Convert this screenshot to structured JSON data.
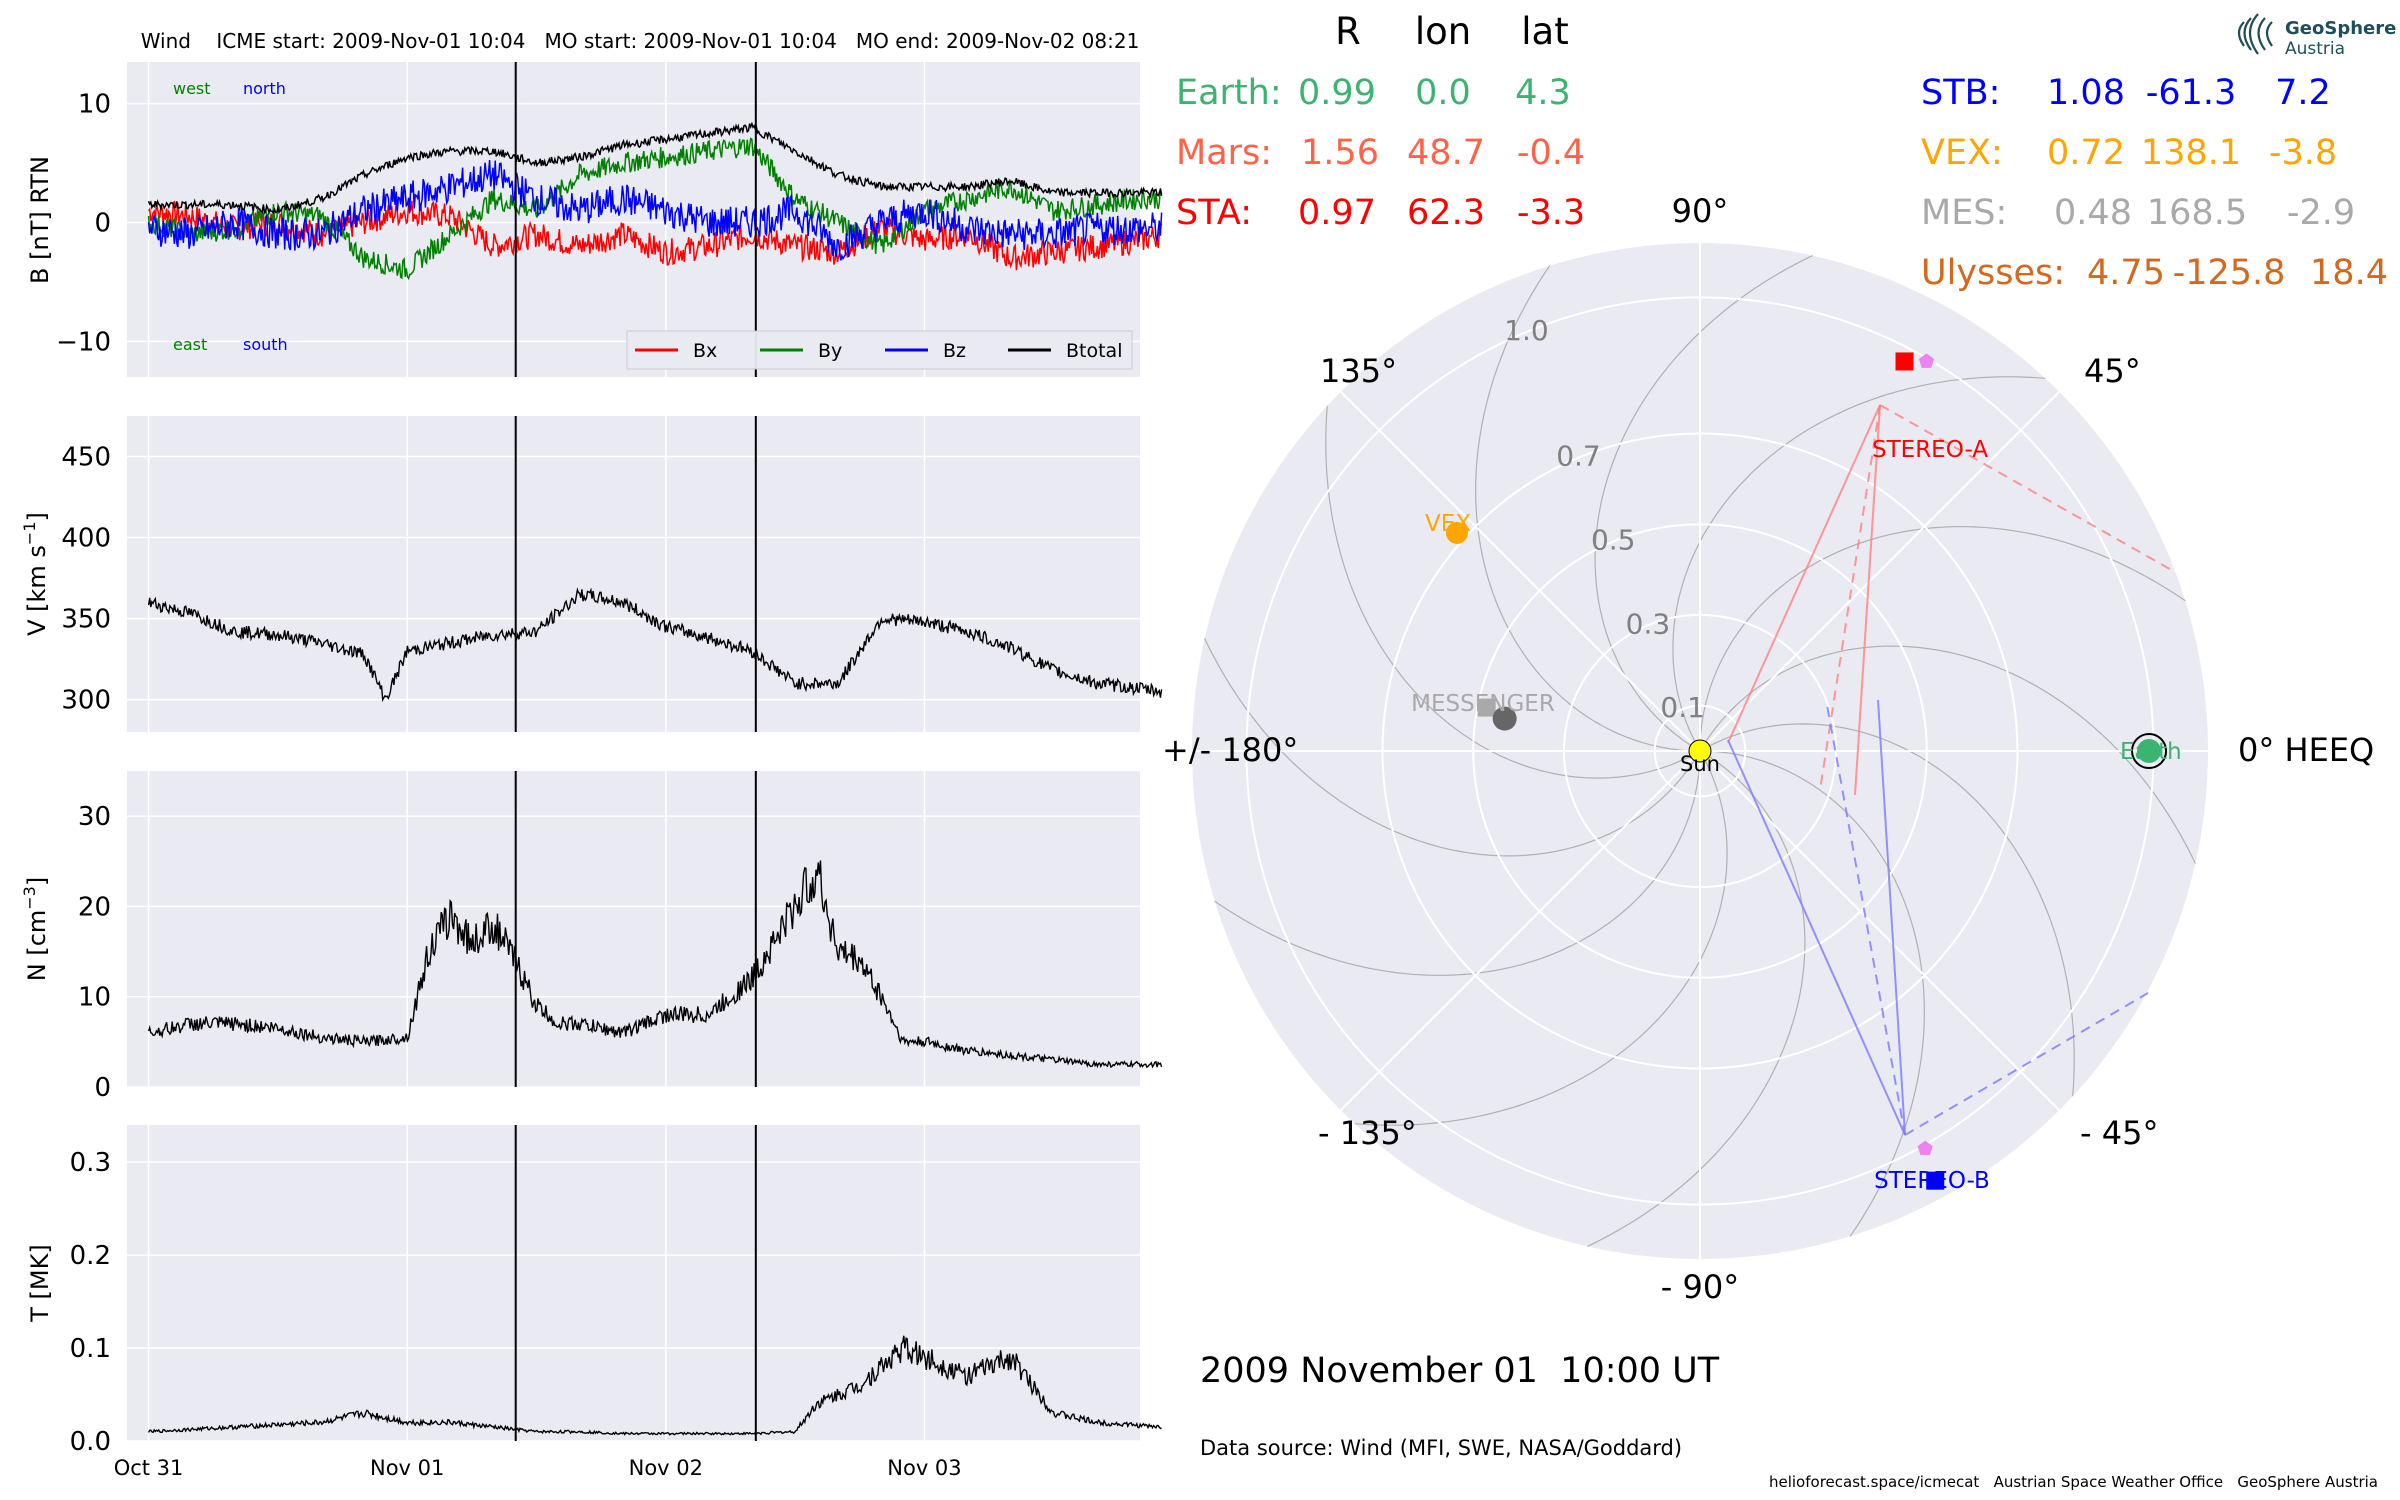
{
  "title": "Wind    ICME start: 2009-Nov-01 10:04   MO start: 2009-Nov-01 10:04   MO end: 2009-Nov-02 08:21",
  "colors": {
    "panel_bg": "#eaeaf2",
    "grid": "#ffffff",
    "bx": "#ff0000",
    "by": "#008000",
    "bz": "#0000ff",
    "btotal": "#000000",
    "earth": "#3cb371",
    "mars": "#ff6347",
    "sta": "#ff0000",
    "stb": "#0000ff",
    "vex": "#ffa500",
    "mes": "#a9a9a9",
    "ulysses": "#d2691e",
    "messenger_dot": "#666666",
    "sun": "#ffff00",
    "stereo_pentagon": "#ee82ee"
  },
  "chart_data": [
    {
      "type": "line",
      "ylabel": "B [nT] RTN",
      "ylim": [
        -13,
        13.5
      ],
      "yticks": [
        "10",
        "0",
        "−10"
      ],
      "ytick_values": [
        10,
        0,
        -10
      ],
      "grid": true,
      "direction_labels": {
        "west": "west",
        "north": "north",
        "east": "east",
        "south": "south"
      },
      "legend": {
        "position": "lower-right",
        "entries": [
          "Bx",
          "By",
          "Bz",
          "Btotal"
        ]
      },
      "x_hours": [
        0,
        4,
        8,
        12,
        16,
        20,
        24,
        28,
        32,
        36,
        40,
        44,
        48,
        52,
        56,
        60,
        64,
        68,
        72,
        76,
        80,
        84,
        88,
        92,
        94
      ],
      "series": [
        {
          "name": "Bx",
          "values": [
            1,
            0.5,
            -0.5,
            0,
            -1,
            0,
            1,
            0.5,
            -2,
            -1,
            -2,
            -1,
            -2.5,
            -2,
            -1,
            -2,
            -2.5,
            -0.5,
            -1.5,
            -1,
            -3,
            -2.5,
            -2,
            -1.5,
            -1
          ]
        },
        {
          "name": "By",
          "values": [
            0,
            -1,
            -0.5,
            1,
            0.5,
            -3,
            -4,
            -1,
            2,
            1,
            4,
            5,
            5.5,
            6,
            6.5,
            2,
            0,
            -2,
            1,
            2,
            3,
            1,
            1.5,
            2,
            2
          ]
        },
        {
          "name": "Bz",
          "values": [
            -0.5,
            -1,
            0,
            -1,
            -1,
            1,
            2,
            3,
            4,
            2,
            1,
            2,
            1,
            0,
            0,
            1,
            -2,
            0,
            1,
            -0.5,
            -1,
            -1,
            -0.5,
            -0.5,
            -0.5
          ]
        },
        {
          "name": "Btotal",
          "values": [
            1.5,
            1.5,
            1.5,
            1,
            2,
            4,
            5.5,
            6,
            6,
            5,
            5.5,
            6.5,
            7,
            7.5,
            8,
            6,
            4,
            3,
            3,
            3,
            3.5,
            2.5,
            2.5,
            2.5,
            2.5
          ]
        }
      ]
    },
    {
      "type": "line",
      "ylabel": "V [km s$^{-1}$]",
      "ylabel_main": "V [km s",
      "ylabel_sup": "−1",
      "ylabel_end": "]",
      "ylim": [
        280,
        475
      ],
      "yticks": [
        "450",
        "400",
        "350",
        "300"
      ],
      "ytick_values": [
        450,
        400,
        350,
        300
      ],
      "grid": true,
      "x_hours": [
        0,
        4,
        8,
        12,
        16,
        20,
        22,
        24,
        28,
        32,
        36,
        40,
        44,
        48,
        52,
        56,
        60,
        64,
        68,
        72,
        76,
        80,
        84,
        88,
        94
      ],
      "values": [
        360,
        353,
        342,
        340,
        335,
        328,
        300,
        330,
        335,
        340,
        342,
        365,
        360,
        345,
        338,
        330,
        310,
        310,
        350,
        348,
        342,
        332,
        318,
        310,
        305
      ]
    },
    {
      "type": "line",
      "ylabel": "N [cm$^{-3}$]",
      "ylabel_main": "N [cm",
      "ylabel_sup": "−3",
      "ylabel_end": "]",
      "ylim": [
        0,
        35
      ],
      "yticks": [
        "30",
        "20",
        "10",
        "0"
      ],
      "ytick_values": [
        30,
        20,
        10,
        0
      ],
      "grid": true,
      "x_hours": [
        0,
        4,
        8,
        12,
        16,
        20,
        24,
        26,
        28,
        30,
        32,
        34,
        36,
        38,
        40,
        44,
        48,
        52,
        56,
        60,
        62,
        64,
        66,
        68,
        70,
        72,
        76,
        80,
        84,
        88,
        94
      ],
      "values": [
        6,
        7,
        7,
        6.5,
        5.5,
        5,
        5.5,
        15,
        19,
        16,
        18,
        14,
        9,
        7,
        7,
        6,
        8,
        8,
        12,
        20,
        24,
        15,
        14,
        10,
        5,
        5,
        4,
        3.5,
        3,
        2.5,
        2.5
      ]
    },
    {
      "type": "line",
      "ylabel": "T [MK]",
      "ylim": [
        0,
        0.34
      ],
      "yticks": [
        "0.3",
        "0.2",
        "0.1",
        "0.0"
      ],
      "ytick_values": [
        0.3,
        0.2,
        0.1,
        0.0
      ],
      "grid": true,
      "x_hours": [
        0,
        8,
        16,
        20,
        24,
        28,
        32,
        36,
        40,
        44,
        48,
        52,
        56,
        60,
        62,
        64,
        66,
        68,
        70,
        72,
        76,
        80,
        82,
        84,
        88,
        94
      ],
      "values": [
        0.01,
        0.015,
        0.02,
        0.03,
        0.02,
        0.02,
        0.015,
        0.01,
        0.01,
        0.008,
        0.008,
        0.008,
        0.008,
        0.01,
        0.04,
        0.05,
        0.06,
        0.08,
        0.1,
        0.09,
        0.07,
        0.09,
        0.06,
        0.03,
        0.02,
        0.015
      ]
    }
  ],
  "x_axis": {
    "ticks": [
      "Oct 31",
      "Nov 01",
      "Nov 02",
      "Nov 03"
    ],
    "tick_hours": [
      0,
      24,
      48,
      72
    ],
    "range_hours": [
      -2,
      92
    ],
    "event_lines_hours": [
      34.07,
      56.35
    ]
  },
  "polar": {
    "r_max": 1.12,
    "ring_labels": [
      "0.1",
      "0.3",
      "0.5",
      "0.7",
      "1.0"
    ],
    "ring_values": [
      0.1,
      0.3,
      0.5,
      0.7,
      1.0
    ],
    "angle_labels": {
      "a0": "0° HEEQ",
      "a45": "45°",
      "a90": "90°",
      "a135": "135°",
      "a180": "+/- 180°",
      "am135": "- 135°",
      "am90": "- 90°",
      "am45": "- 45°"
    },
    "objects": [
      {
        "name": "Earth",
        "label": "Earth",
        "r": 0.99,
        "lon": 0.0,
        "color": "#3cb371",
        "marker": "circle-ring"
      },
      {
        "name": "STEREO-A",
        "label": "STEREO-A",
        "r": 0.97,
        "lon": 62.3,
        "color": "#ff0000",
        "marker": "square"
      },
      {
        "name": "STEREO-B",
        "label": "STEREO-B",
        "r": 1.08,
        "lon": -61.3,
        "color": "#0000ff",
        "marker": "square"
      },
      {
        "name": "VEX",
        "label": "VEX",
        "r": 0.72,
        "lon": 138.1,
        "color": "#ffa500",
        "marker": "circle"
      },
      {
        "name": "MESSENGER",
        "label": "MESSENGER",
        "r": 0.48,
        "lon": 168.5,
        "color": "#a9a9a9",
        "marker": "square"
      },
      {
        "name": "Sun",
        "label": "Sun",
        "r": 0.0,
        "lon": 0.0,
        "color": "#ffff00",
        "marker": "circle"
      }
    ]
  },
  "position_table": {
    "headers": [
      "R",
      "lon",
      "lat"
    ],
    "left": [
      {
        "name": "Earth:",
        "r": "0.99",
        "lon": "0.0",
        "lat": "4.3"
      },
      {
        "name": "Mars:",
        "r": "1.56",
        "lon": "48.7",
        "lat": "-0.4"
      },
      {
        "name": "STA:",
        "r": "0.97",
        "lon": "62.3",
        "lat": "-3.3"
      }
    ],
    "right": [
      {
        "name": "STB:",
        "r": "1.08",
        "lon": "-61.3",
        "lat": "7.2"
      },
      {
        "name": "VEX:",
        "r": "0.72",
        "lon": "138.1",
        "lat": "-3.8"
      },
      {
        "name": "MES:",
        "r": "0.48",
        "lon": "168.5",
        "lat": "-2.9"
      },
      {
        "name": "Ulysses:",
        "r": "4.75",
        "lon": "-125.8",
        "lat": "18.4"
      }
    ]
  },
  "logo": {
    "line1": "GeoSphere",
    "line2": "Austria"
  },
  "date_label": "2009 November 01  10:00 UT",
  "data_source": "Data source: Wind (MFI, SWE, NASA/Goddard)",
  "footer": "helioforecast.space/icmecat   Austrian Space Weather Office   GeoSphere Austria"
}
